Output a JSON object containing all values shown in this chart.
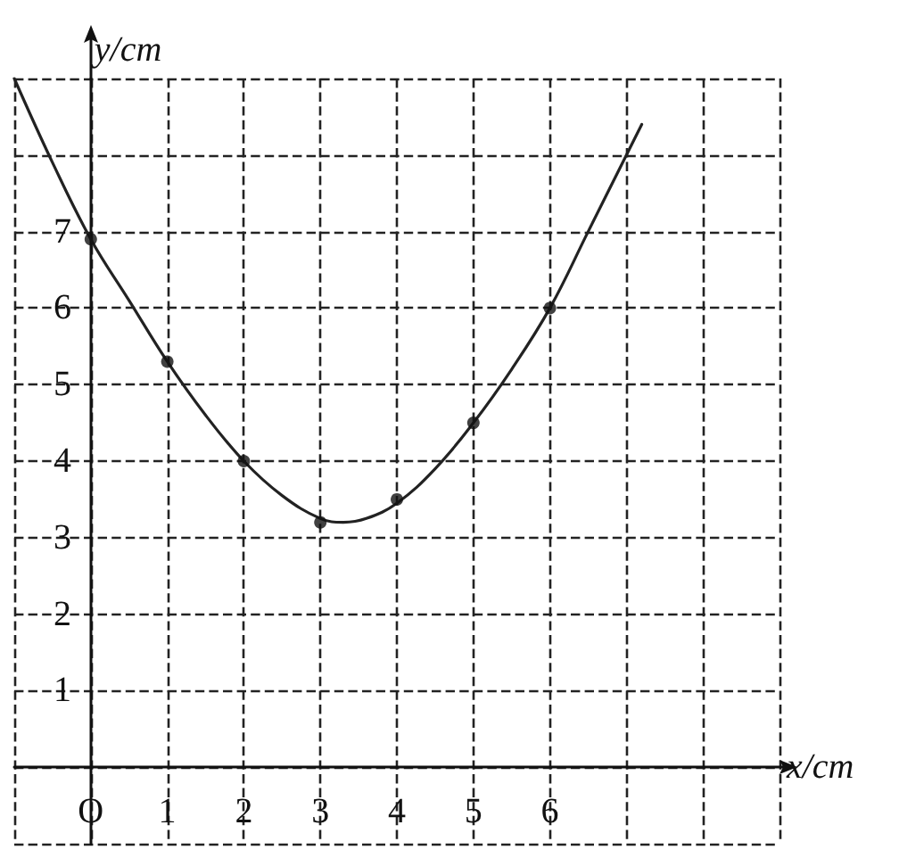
{
  "chart_data": {
    "type": "scatter",
    "xlabel": "x/cm",
    "ylabel": "y/cm",
    "xlim": [
      -1,
      9
    ],
    "ylim": [
      -1,
      9
    ],
    "xticks": [
      {
        "value": -1,
        "label": null
      },
      {
        "value": 0,
        "label": "O"
      },
      1,
      2,
      3,
      4,
      5,
      6,
      {
        "value": 7,
        "label": null
      },
      {
        "value": 8,
        "label": null
      },
      {
        "value": 9,
        "label": null
      }
    ],
    "yticks": [
      {
        "value": -1,
        "label": null
      },
      {
        "value": 0,
        "label": null
      },
      1,
      2,
      3,
      4,
      5,
      6,
      7,
      {
        "value": 8,
        "label": null
      },
      {
        "value": 9,
        "label": null
      }
    ],
    "grid": true,
    "series": [
      {
        "type": "line",
        "color": "#222222",
        "marker": "none",
        "line_style": "solid",
        "x": [
          -1,
          -0.5,
          0,
          0.5,
          1,
          1.5,
          2,
          2.5,
          3,
          3.3,
          3.6,
          4,
          4.5,
          5,
          5.5,
          6,
          6.5,
          7.2
        ],
        "values": [
          9.0,
          7.9,
          6.9,
          6.1,
          5.3,
          4.6,
          4.0,
          3.55,
          3.25,
          3.2,
          3.25,
          3.45,
          3.9,
          4.5,
          5.2,
          6.0,
          7.0,
          8.4
        ]
      },
      {
        "color": "#111111",
        "marker": "circle",
        "x": [
          0,
          1,
          2,
          3,
          4,
          5,
          6
        ],
        "values": [
          6.9,
          5.3,
          4.0,
          3.2,
          3.5,
          4.5,
          6.0
        ]
      }
    ]
  }
}
